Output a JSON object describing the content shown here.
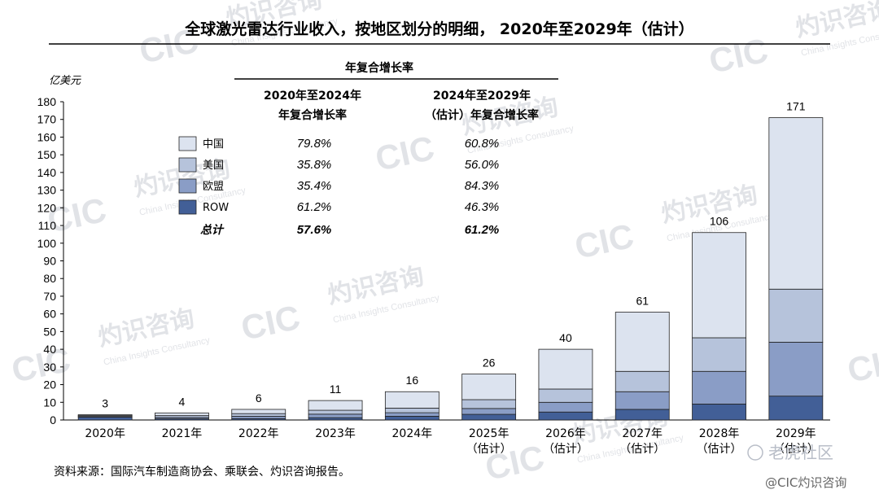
{
  "title": "全球激光雷达行业收入，按地区划分的明细， 2020年至2029年（估计）",
  "unit": "亿美元",
  "source": "资料来源：国际汽车制造商协会、乘联会、灼识咨询报告。",
  "watermark": {
    "text": "CIC",
    "cn": "灼识咨询",
    "en": "China Insights Consultancy",
    "badge": "老虎社区",
    "handle": "@CIC灼识咨询"
  },
  "colors": {
    "china": "#dce3ef",
    "us": "#b6c3db",
    "eu": "#8a9dc6",
    "row": "#425f97"
  },
  "chart_data": {
    "type": "bar",
    "stacked": true,
    "categories": [
      "2020年",
      "2021年",
      "2022年",
      "2023年",
      "2024年",
      "2025年",
      "2026年",
      "2027年",
      "2028年",
      "2029年"
    ],
    "category_sublabels": [
      "",
      "",
      "",
      "",
      "",
      "（估计）",
      "（估计）",
      "（估计）",
      "（估计）",
      "（估计）"
    ],
    "series": [
      {
        "name": "ROW",
        "values": [
          1.6,
          0.7,
          0.8,
          1.3,
          2.1,
          3.2,
          4.5,
          6.0,
          9.0,
          13.5
        ]
      },
      {
        "name": "欧盟",
        "values": [
          0.4,
          0.8,
          1.3,
          2.0,
          2.0,
          3.3,
          5.5,
          10.0,
          18.5,
          30.5
        ]
      },
      {
        "name": "美国",
        "values": [
          0.5,
          1.0,
          1.5,
          2.2,
          2.6,
          5.0,
          7.5,
          11.5,
          19.0,
          30.0
        ]
      },
      {
        "name": "中国",
        "values": [
          0.5,
          1.5,
          2.4,
          5.5,
          9.3,
          14.5,
          22.5,
          33.5,
          59.5,
          97.0
        ]
      }
    ],
    "totals": [
      "3",
      "4",
      "6",
      "11",
      "16",
      "26",
      "40",
      "61",
      "106",
      "171"
    ],
    "ylim": [
      0,
      180
    ],
    "yticks": [
      0,
      10,
      20,
      30,
      40,
      50,
      60,
      70,
      80,
      90,
      100,
      110,
      120,
      130,
      140,
      150,
      160,
      170,
      180
    ],
    "ylabel": "亿美元",
    "legend_position": "top-left"
  },
  "cagr_table": {
    "header": "年复合增长率",
    "col1": [
      "2020年至2024年",
      "年复合增长率"
    ],
    "col2": [
      "2024年至2029年",
      "（估计）年复合增长率"
    ],
    "rows": [
      {
        "label": "中国",
        "c1": "79.8%",
        "c2": "60.8%",
        "color_key": "china"
      },
      {
        "label": "美国",
        "c1": "35.8%",
        "c2": "56.0%",
        "color_key": "us"
      },
      {
        "label": "欧盟",
        "c1": "35.4%",
        "c2": "84.3%",
        "color_key": "eu"
      },
      {
        "label": "ROW",
        "c1": "61.2%",
        "c2": "46.3%",
        "color_key": "row"
      },
      {
        "label": "总计",
        "c1": "57.6%",
        "c2": "61.2%",
        "bold": true
      }
    ]
  }
}
